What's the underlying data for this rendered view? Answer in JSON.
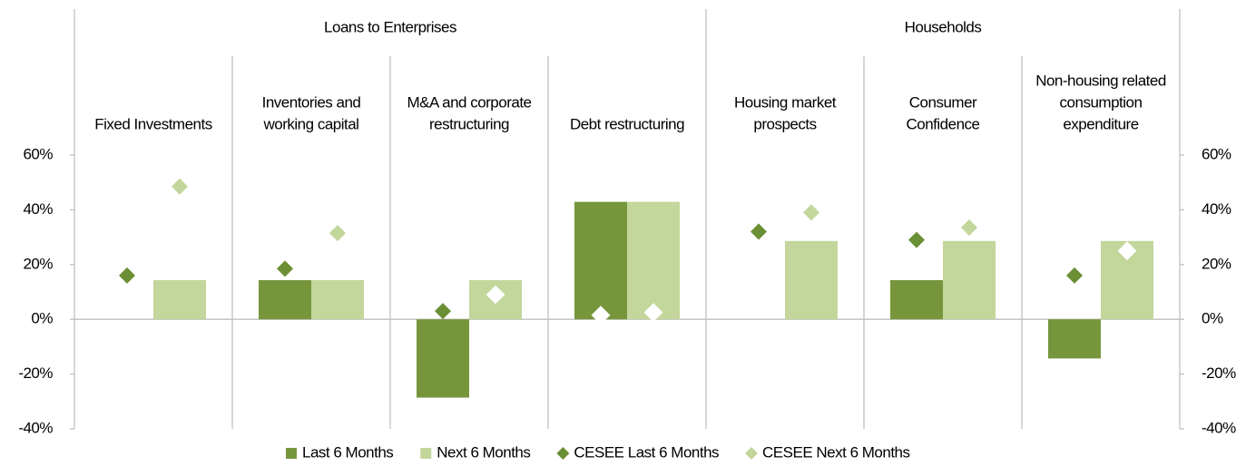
{
  "chart_data": {
    "type": "bar",
    "groups": [
      "Loans to Enterprises",
      "Households"
    ],
    "categories": [
      [
        "Fixed Investments"
      ],
      [
        "Inventories and",
        "working capital"
      ],
      [
        "M&A and corporate",
        "restructuring"
      ],
      [
        "Debt restructuring"
      ],
      [
        "Housing market",
        "prospects"
      ],
      [
        "Consumer",
        "Confidence"
      ],
      [
        "Non-housing related",
        "consumption",
        "expenditure"
      ]
    ],
    "series": [
      {
        "name": "Last 6 Months",
        "color": "#77963c",
        "kind": "bar",
        "values": [
          0,
          14.3,
          -28.6,
          42.9,
          0,
          14.3,
          -14.3
        ]
      },
      {
        "name": "Next 6 Months",
        "color": "#c3d69b",
        "kind": "bar",
        "values": [
          14.3,
          14.3,
          14.3,
          42.9,
          28.6,
          28.6,
          28.6
        ]
      },
      {
        "name": "CESEE Last 6 Months",
        "color": "#6b8f35",
        "kind": "marker",
        "values": [
          16,
          18.5,
          3,
          1.5,
          32,
          29,
          16
        ]
      },
      {
        "name": "CESEE Next 6 Months",
        "color": "#c3d69b",
        "kind": "marker",
        "values": [
          48.5,
          31.5,
          9,
          2.5,
          39,
          33.5,
          25
        ]
      }
    ],
    "ylim": [
      -40,
      60
    ],
    "yticks": [
      {
        "value": -40,
        "label": "-40%"
      },
      {
        "value": -20,
        "label": "-20%"
      },
      {
        "value": 0,
        "label": "0%"
      },
      {
        "value": 20,
        "label": "20%"
      },
      {
        "value": 40,
        "label": "40%"
      },
      {
        "value": 60,
        "label": "60%"
      }
    ]
  }
}
